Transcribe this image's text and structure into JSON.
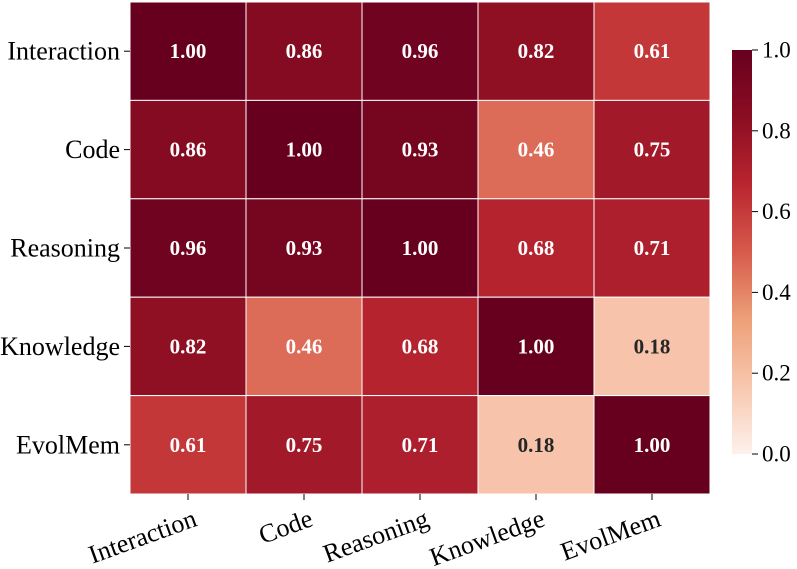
{
  "chart_data": {
    "type": "heatmap",
    "title": "",
    "rows": [
      "Interaction",
      "Code",
      "Reasoning",
      "Knowledge",
      "EvolMem"
    ],
    "columns": [
      "Interaction",
      "Code",
      "Reasoning",
      "Knowledge",
      "EvolMem"
    ],
    "matrix": [
      [
        1.0,
        0.86,
        0.96,
        0.82,
        0.61
      ],
      [
        0.86,
        1.0,
        0.93,
        0.46,
        0.75
      ],
      [
        0.96,
        0.93,
        1.0,
        0.68,
        0.71
      ],
      [
        0.82,
        0.46,
        0.68,
        1.0,
        0.18
      ],
      [
        0.61,
        0.75,
        0.71,
        0.18,
        1.0
      ]
    ],
    "value_format": "0.00",
    "colorbar": {
      "range": [
        0.0,
        1.0
      ],
      "ticks": [
        "0.0",
        "0.2",
        "0.4",
        "0.6",
        "0.8",
        "1.0"
      ]
    },
    "colormap": [
      "#fdf1ec",
      "#f8c7af",
      "#eda078",
      "#d75a4c",
      "#b9252f",
      "#8b0d22",
      "#67001f"
    ]
  }
}
